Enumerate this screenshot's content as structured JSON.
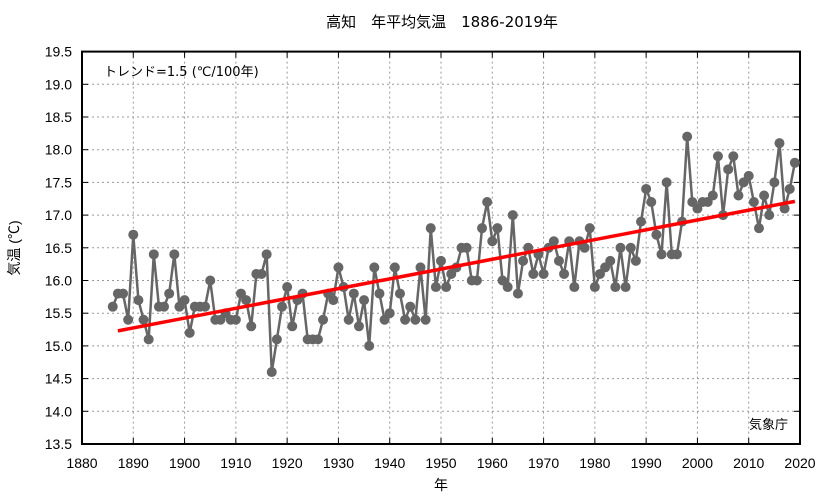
{
  "chart_data": {
    "type": "line",
    "title": "高知　年平均気温　1886-2019年",
    "xlabel": "年",
    "ylabel": "気温 (℃)",
    "xlim": [
      1880,
      2020
    ],
    "ylim": [
      13.5,
      19.5
    ],
    "xticks": [
      "1880",
      "1890",
      "1900",
      "1910",
      "1920",
      "1930",
      "1940",
      "1950",
      "1960",
      "1970",
      "1980",
      "1990",
      "2000",
      "2010",
      "2020"
    ],
    "yticks": [
      "13.5",
      "14.0",
      "14.5",
      "15.0",
      "15.5",
      "16.0",
      "16.5",
      "17.0",
      "17.5",
      "18.0",
      "18.5",
      "19.0",
      "19.5"
    ],
    "grid": true,
    "annotations": {
      "trend_label": "トレンド=1.5 (℃/100年)",
      "source": "気象庁"
    },
    "series": [
      {
        "name": "年平均気温",
        "color": "#666666",
        "x_start": 1886,
        "values": [
          15.6,
          15.8,
          15.8,
          15.4,
          16.7,
          15.7,
          15.4,
          15.1,
          16.4,
          15.6,
          15.6,
          15.8,
          16.4,
          15.6,
          15.7,
          15.2,
          15.6,
          15.6,
          15.6,
          16.0,
          15.4,
          15.4,
          15.5,
          15.4,
          15.4,
          15.8,
          15.7,
          15.3,
          16.1,
          16.1,
          16.4,
          14.6,
          15.1,
          15.6,
          15.9,
          15.3,
          15.7,
          15.8,
          15.1,
          15.1,
          15.1,
          15.4,
          15.8,
          15.7,
          16.2,
          15.9,
          15.4,
          15.8,
          15.3,
          15.7,
          15.0,
          16.2,
          15.8,
          15.4,
          15.5,
          16.2,
          15.8,
          15.4,
          15.6,
          15.4,
          16.2,
          15.4,
          16.8,
          15.9,
          16.3,
          15.9,
          16.1,
          16.2,
          16.5,
          16.5,
          16.0,
          16.0,
          16.8,
          17.2,
          16.6,
          16.8,
          16.0,
          15.9,
          17.0,
          15.8,
          16.3,
          16.5,
          16.1,
          16.4,
          16.1,
          16.5,
          16.6,
          16.3,
          16.1,
          16.6,
          15.9,
          16.6,
          16.5,
          16.8,
          15.9,
          16.1,
          16.2,
          16.3,
          15.9,
          16.5,
          15.9,
          16.5,
          16.3,
          16.9,
          17.4,
          17.2,
          16.7,
          16.4,
          17.5,
          16.4,
          16.4,
          16.9,
          18.2,
          17.2,
          17.1,
          17.2,
          17.2,
          17.3,
          17.9,
          17.0,
          17.7,
          17.9,
          17.3,
          17.5,
          17.6,
          17.2,
          16.8,
          17.3,
          17.0,
          17.5,
          18.1,
          17.1,
          17.4,
          17.8
        ]
      },
      {
        "name": "トレンド",
        "color": "#ff0000",
        "x": [
          1887,
          2019
        ],
        "values": [
          15.23,
          17.21
        ]
      }
    ]
  }
}
